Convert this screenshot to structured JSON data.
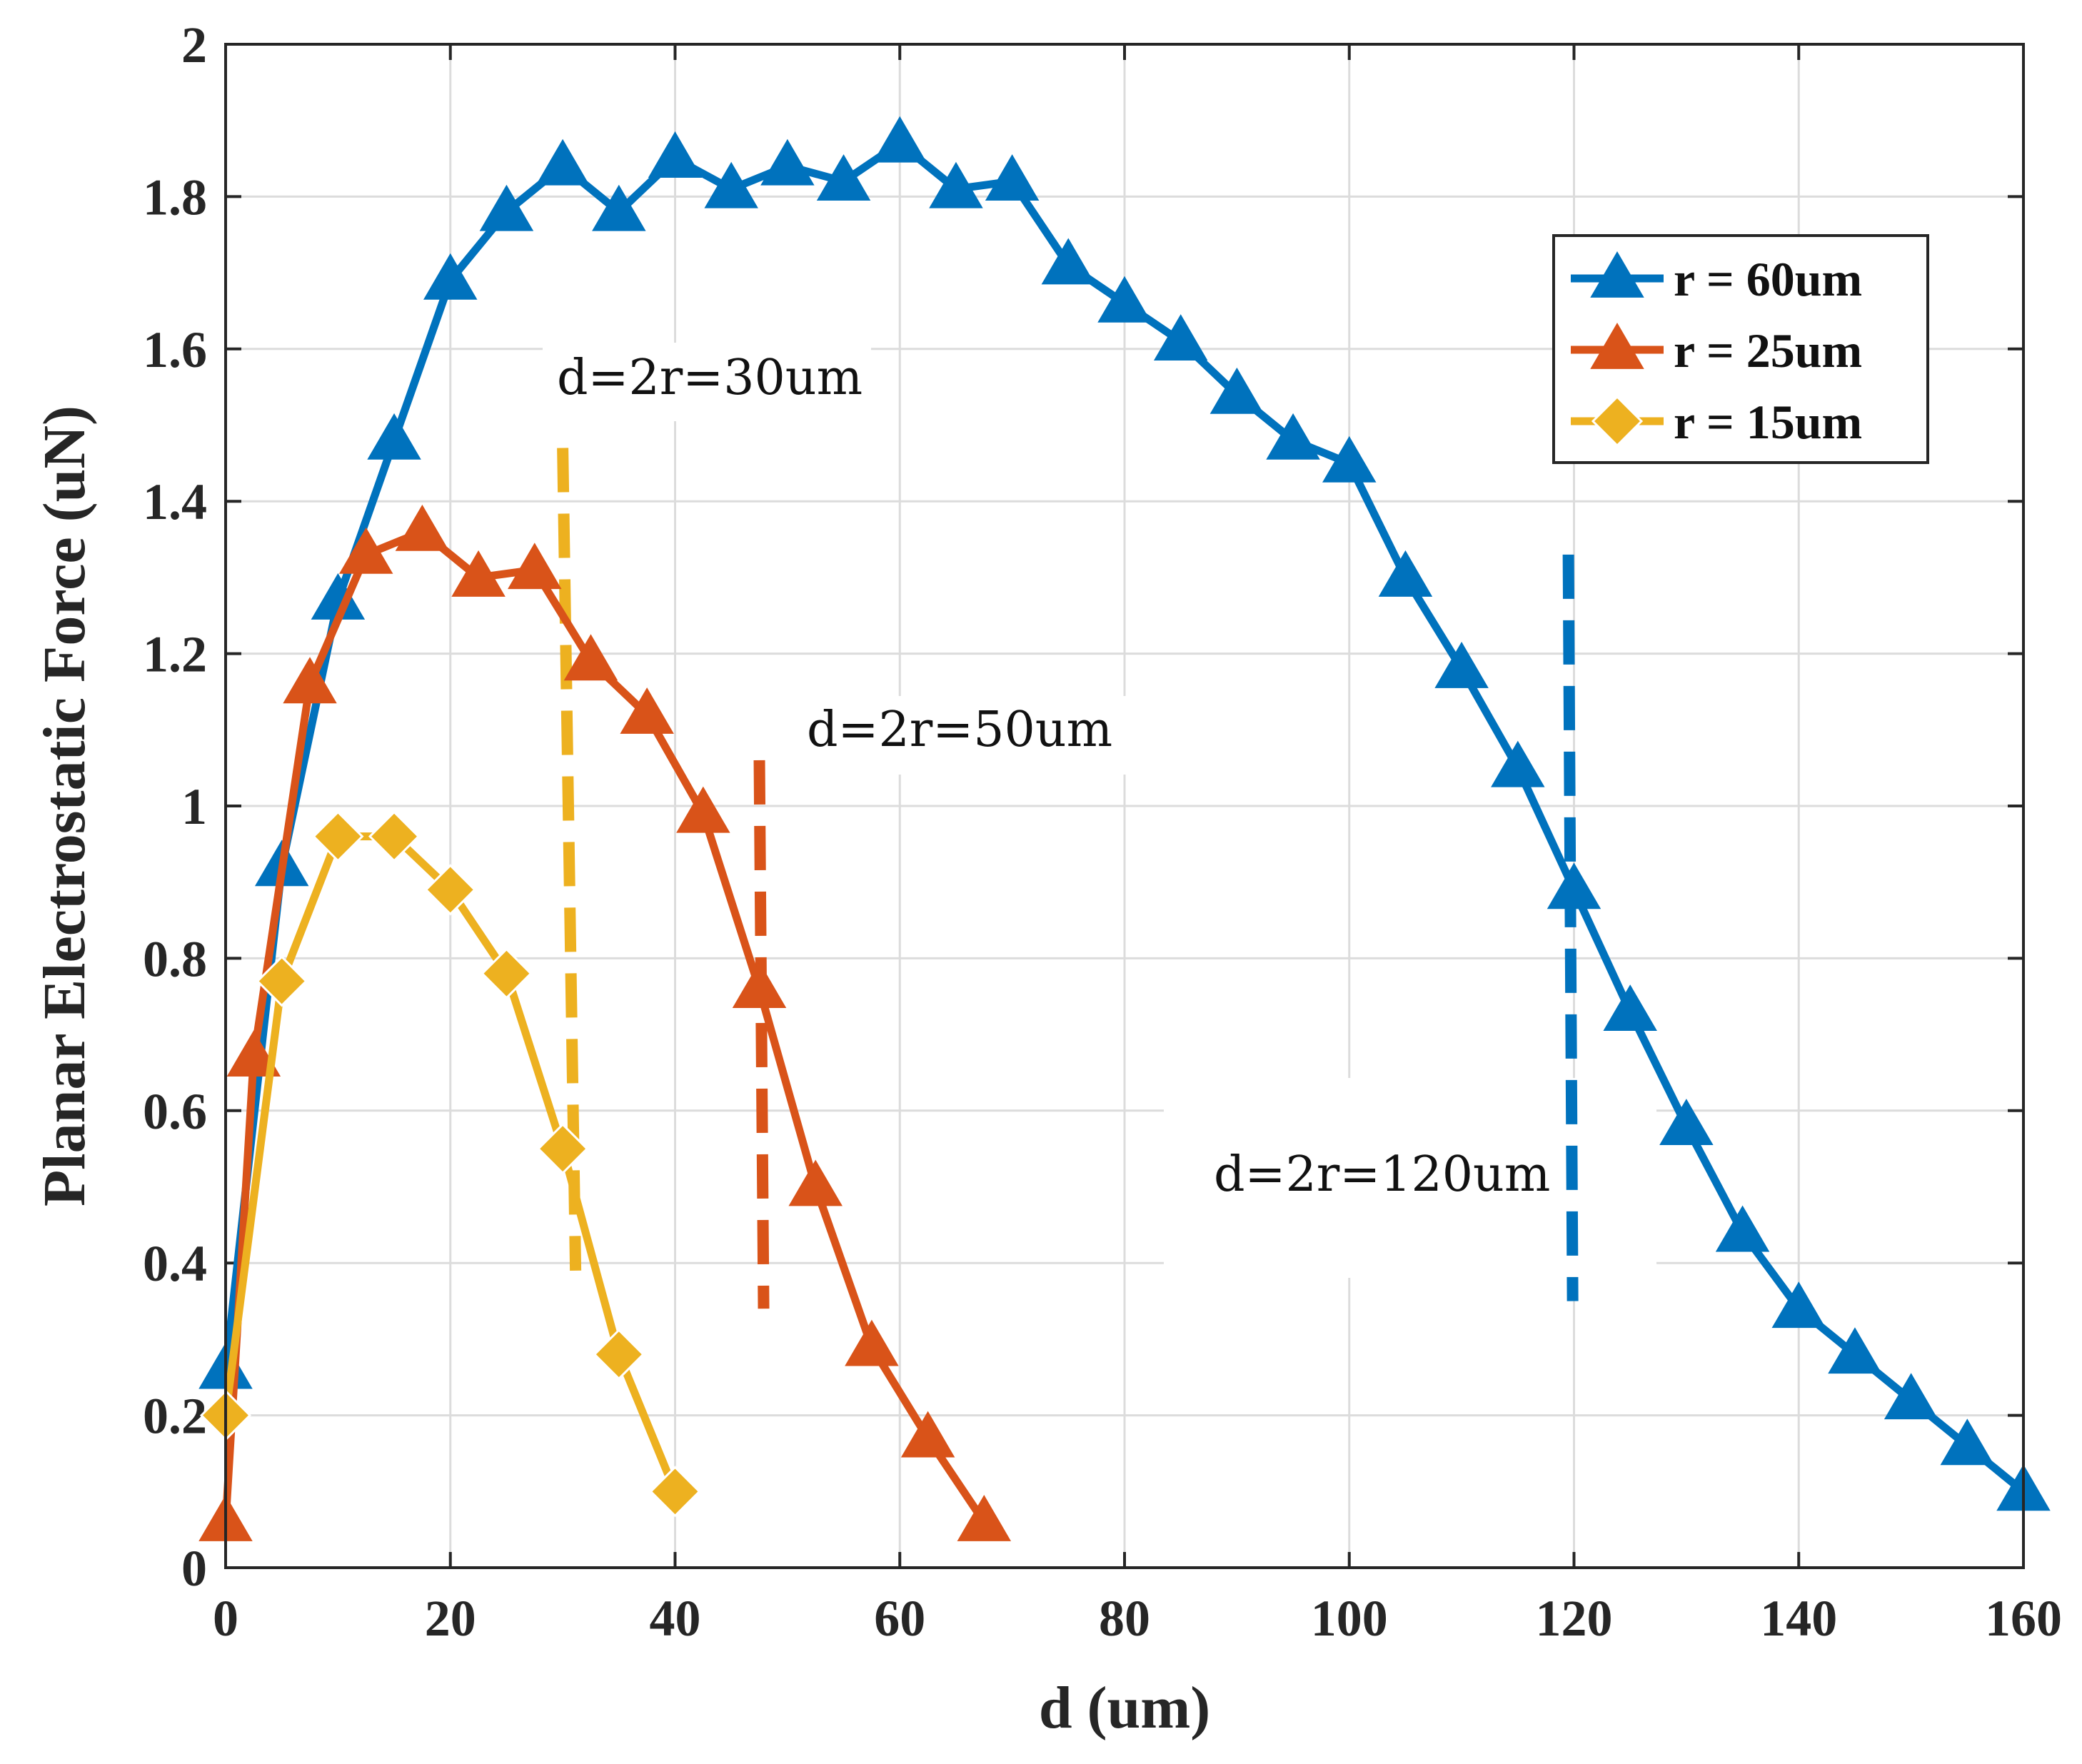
{
  "chart_data": {
    "type": "line",
    "title": "",
    "xlabel": "d (um)",
    "ylabel": "Planar Electrostatic Force (uN)",
    "xlim": [
      0,
      160
    ],
    "ylim": [
      0,
      2
    ],
    "xticks": [
      0,
      20,
      40,
      60,
      80,
      100,
      120,
      140,
      160
    ],
    "yticks": [
      0,
      0.2,
      0.4,
      0.6,
      0.8,
      1,
      1.2,
      1.4,
      1.6,
      1.8,
      2
    ],
    "xtick_labels": [
      "0",
      "20",
      "40",
      "60",
      "80",
      "100",
      "120",
      "140",
      "160"
    ],
    "ytick_labels": [
      "0",
      "0.2",
      "0.4",
      "0.6",
      "0.8",
      "1",
      "1.2",
      "1.4",
      "1.6",
      "1.8",
      "2"
    ],
    "grid": true,
    "legend_position": "top-right",
    "series": [
      {
        "name": "r = 60um",
        "color": "#0072BD",
        "marker": "triangle",
        "x": [
          0,
          5,
          10,
          15,
          20,
          25,
          30,
          35,
          40,
          45,
          50,
          55,
          60,
          65,
          70,
          75,
          80,
          85,
          90,
          95,
          100,
          105,
          110,
          115,
          120,
          125,
          130,
          135,
          140,
          145,
          150,
          155,
          160
        ],
        "y": [
          0.26,
          0.92,
          1.27,
          1.48,
          1.69,
          1.78,
          1.84,
          1.78,
          1.85,
          1.81,
          1.84,
          1.82,
          1.87,
          1.81,
          1.82,
          1.71,
          1.66,
          1.61,
          1.54,
          1.48,
          1.45,
          1.3,
          1.18,
          1.05,
          0.89,
          0.73,
          0.58,
          0.44,
          0.34,
          0.28,
          0.22,
          0.16,
          0.1
        ]
      },
      {
        "name": "r = 25um",
        "color": "#D95319",
        "marker": "triangle",
        "x": [
          0,
          2.5,
          7.5,
          12.5,
          17.5,
          22.5,
          27.5,
          32.5,
          37.5,
          42.5,
          47.5,
          52.5,
          57.5,
          62.5,
          67.5
        ],
        "y": [
          0.06,
          0.67,
          1.16,
          1.33,
          1.36,
          1.3,
          1.31,
          1.19,
          1.12,
          0.99,
          0.76,
          0.5,
          0.29,
          0.17,
          0.06
        ]
      },
      {
        "name": "r = 15um",
        "color": "#EDB120",
        "marker": "diamond",
        "x": [
          0,
          5,
          10,
          15,
          20,
          25,
          30,
          35,
          40
        ],
        "y": [
          0.2,
          0.77,
          0.96,
          0.96,
          0.89,
          0.78,
          0.55,
          0.28,
          0.1
        ]
      }
    ],
    "reference_lines": [
      {
        "label": "d=2r=30um",
        "x": 30,
        "y_range": [
          0.39,
          1.47
        ],
        "color": "#EDB120"
      },
      {
        "label": "d=2r=50um",
        "x": 47.5,
        "y_range": [
          0.34,
          1.06
        ],
        "color": "#D95319"
      },
      {
        "label": "d=2r=120um",
        "x": 119.5,
        "y_range": [
          0.35,
          1.33
        ],
        "color": "#0072BD"
      }
    ]
  }
}
